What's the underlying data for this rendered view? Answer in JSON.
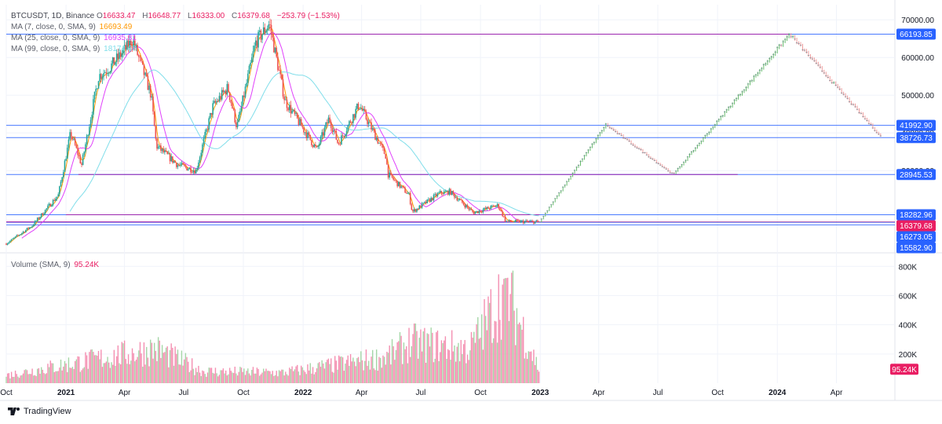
{
  "header": {
    "symbol_line": "BTCUSDT, 1D, Binance",
    "ohlc": [
      {
        "key": "O",
        "value": "16633.47"
      },
      {
        "key": "H",
        "value": "16648.77"
      },
      {
        "key": "L",
        "value": "16333.00"
      },
      {
        "key": "C",
        "value": "16379.68"
      }
    ],
    "change": "−253.79 (−1.53%)",
    "indicators": [
      {
        "label": "MA (7, close, 0, SMA, 9)",
        "value": "16693.49",
        "color": "#ff9800"
      },
      {
        "label": "MA (25, close, 0, SMA, 9)",
        "value": "16935.81",
        "color": "#e040fb"
      },
      {
        "label": "MA (99, close, 0, SMA, 9)",
        "value": "18174.67",
        "color": "#80deea"
      }
    ]
  },
  "volume_legend": {
    "label": "Volume (SMA, 9)",
    "value": "95.24K"
  },
  "footer": {
    "brand": "TradingView"
  },
  "colors": {
    "up": "#26a69a",
    "down": "#ef5350",
    "accent": "#e91e63",
    "hline_blue": "#2962ff",
    "hline_purple": "#9c27b0",
    "vol_up": "#a5d6a7",
    "vol_down": "#f48fb1",
    "proj_up": "#66bb6a",
    "proj_down": "#ef9a9a"
  },
  "chart_data": [
    {
      "type": "line",
      "name": "price",
      "x_tick_labels": [
        "Oct",
        "2021",
        "Apr",
        "Jul",
        "Oct",
        "2022",
        "Apr",
        "Jul",
        "Oct",
        "2023",
        "Apr",
        "Jul",
        "Oct",
        "2024",
        "Apr"
      ],
      "x_ticks": [
        "2020-10-01",
        "2021-01-01",
        "2021-04-01",
        "2021-07-01",
        "2021-10-01",
        "2022-01-01",
        "2022-04-01",
        "2022-07-01",
        "2022-10-01",
        "2023-01-01",
        "2023-04-01",
        "2023-07-01",
        "2023-10-01",
        "2024-01-01",
        "2024-04-01"
      ],
      "xlim": [
        "2020-10-01",
        "2024-06-30"
      ],
      "ylim": [
        9000,
        74000
      ],
      "y_ticks": [
        30000,
        40000,
        50000,
        60000,
        70000
      ],
      "y_tick_labels": [
        "30000.00",
        "40000.00",
        "50000.00",
        "60000.00",
        "70000.00"
      ],
      "price_path": [
        [
          "2020-10-01",
          10600
        ],
        [
          "2020-11-10",
          15400
        ],
        [
          "2020-12-20",
          23500
        ],
        [
          "2021-01-08",
          40000
        ],
        [
          "2021-01-25",
          31500
        ],
        [
          "2021-02-20",
          55000
        ],
        [
          "2021-03-10",
          57500
        ],
        [
          "2021-04-14",
          64500
        ],
        [
          "2021-05-12",
          50000
        ],
        [
          "2021-05-20",
          36500
        ],
        [
          "2021-06-22",
          31500
        ],
        [
          "2021-07-20",
          30000
        ],
        [
          "2021-08-15",
          47000
        ],
        [
          "2021-09-07",
          52000
        ],
        [
          "2021-09-21",
          41500
        ],
        [
          "2021-10-20",
          64000
        ],
        [
          "2021-11-10",
          69000
        ],
        [
          "2021-12-04",
          48500
        ],
        [
          "2022-01-22",
          35500
        ],
        [
          "2022-02-10",
          44000
        ],
        [
          "2022-02-24",
          37000
        ],
        [
          "2022-03-28",
          47500
        ],
        [
          "2022-05-08",
          34000
        ],
        [
          "2022-05-12",
          29000
        ],
        [
          "2022-06-13",
          23500
        ],
        [
          "2022-06-18",
          19000
        ],
        [
          "2022-07-30",
          24000
        ],
        [
          "2022-08-15",
          24400
        ],
        [
          "2022-09-20",
          18800
        ],
        [
          "2022-10-28",
          20800
        ],
        [
          "2022-11-09",
          16500
        ],
        [
          "2022-12-20",
          16400
        ],
        [
          "2022-12-31",
          16379.68
        ]
      ],
      "projection_path": [
        [
          "2022-12-31",
          16379.68
        ],
        [
          "2023-04-12",
          42200
        ],
        [
          "2023-07-25",
          28945
        ],
        [
          "2024-01-20",
          66193
        ],
        [
          "2024-06-10",
          38726
        ]
      ],
      "ma7_last": 16693.49,
      "ma25_last": 16935.81,
      "ma99_last": 18174.67,
      "horizontal_lines": [
        {
          "value": 66193.85,
          "label": "66193.85",
          "color": "#2962ff"
        },
        {
          "value": 41992.9,
          "label": "41992.90",
          "color": "#2962ff"
        },
        {
          "value": 38726.73,
          "label": "38726.73",
          "color": "#2962ff"
        },
        {
          "value": 28945.53,
          "label": "28945.53",
          "color": "#2962ff"
        },
        {
          "value": 18282.96,
          "label": "18282.96",
          "color": "#2962ff"
        },
        {
          "value": 16379.68,
          "label": "16379.68",
          "color": "#e91e63"
        },
        {
          "value": 16273.05,
          "label": "16273.05",
          "color": "#2962ff"
        },
        {
          "value": 15582.9,
          "label": "15582.90",
          "color": "#2962ff"
        }
      ]
    },
    {
      "type": "bar",
      "name": "volume",
      "ylim": [
        0,
        850000
      ],
      "y_ticks": [
        200000,
        400000,
        600000,
        800000
      ],
      "y_tick_labels": [
        "200K",
        "400K",
        "600K",
        "800K"
      ],
      "last_value": 95240,
      "last_label": "95.24K",
      "volume_profile": [
        [
          "2020-10-01",
          60000
        ],
        [
          "2021-01-10",
          150000
        ],
        [
          "2021-05-19",
          260000
        ],
        [
          "2021-08-01",
          90000
        ],
        [
          "2021-12-01",
          80000
        ],
        [
          "2022-05-10",
          200000
        ],
        [
          "2022-06-15",
          310000
        ],
        [
          "2022-09-15",
          260000
        ],
        [
          "2022-11-09",
          720000
        ],
        [
          "2022-12-31",
          95240
        ]
      ]
    }
  ]
}
